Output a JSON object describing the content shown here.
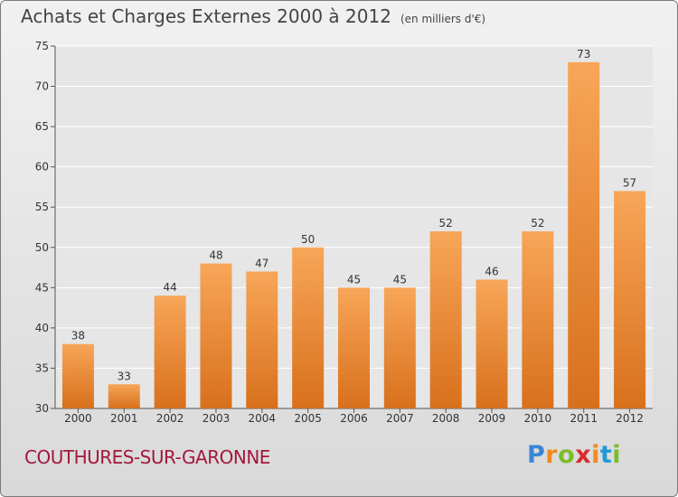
{
  "header": {
    "title": "Achats et Charges Externes 2000 à 2012",
    "unit": "(en milliers d'€)"
  },
  "footer": {
    "city": "COUTHURES-SUR-GARONNE",
    "logo": "Proxiti"
  },
  "colors": {
    "bar_top": "#f7a658",
    "bar_bottom": "#d8701c",
    "city_text": "#a3173f",
    "frame_border": "#7a7a7a"
  },
  "chart_data": {
    "type": "bar",
    "title": "Achats et Charges Externes 2000 à 2012",
    "subtitle": "(en milliers d'€)",
    "xlabel": "",
    "ylabel": "",
    "categories": [
      "2000",
      "2001",
      "2002",
      "2003",
      "2004",
      "2005",
      "2006",
      "2007",
      "2008",
      "2009",
      "2010",
      "2011",
      "2012"
    ],
    "values": [
      38,
      33,
      44,
      48,
      47,
      50,
      45,
      45,
      52,
      46,
      52,
      73,
      57
    ],
    "ylim": [
      30,
      75
    ],
    "yticks": [
      30,
      35,
      40,
      45,
      50,
      55,
      60,
      65,
      70,
      75
    ],
    "grid": true,
    "legend": "none"
  }
}
